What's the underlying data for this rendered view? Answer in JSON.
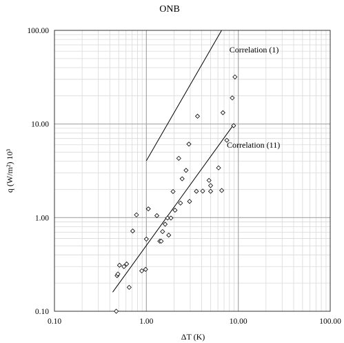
{
  "chart_data": {
    "type": "scatter",
    "title": "ONB",
    "xlabel": "ΔT (K)",
    "ylabel": "q (W/m²) 10³",
    "xscale": "log",
    "yscale": "log",
    "xlim": [
      0.1,
      100
    ],
    "ylim": [
      0.1,
      100
    ],
    "grid": true,
    "x_ticks": [
      "0.10",
      "1.00",
      "10.00",
      "100.00"
    ],
    "y_ticks": [
      "0.10",
      "1.00",
      "10.00",
      "100.00"
    ],
    "points": [
      {
        "x": 0.47,
        "y": 0.1
      },
      {
        "x": 0.48,
        "y": 0.24
      },
      {
        "x": 0.49,
        "y": 0.25
      },
      {
        "x": 0.51,
        "y": 0.31
      },
      {
        "x": 0.57,
        "y": 0.3
      },
      {
        "x": 0.61,
        "y": 0.32
      },
      {
        "x": 0.65,
        "y": 0.18
      },
      {
        "x": 0.71,
        "y": 0.72
      },
      {
        "x": 0.78,
        "y": 1.07
      },
      {
        "x": 0.89,
        "y": 0.27
      },
      {
        "x": 0.98,
        "y": 0.28
      },
      {
        "x": 1.0,
        "y": 0.59
      },
      {
        "x": 1.05,
        "y": 1.24
      },
      {
        "x": 1.3,
        "y": 1.05
      },
      {
        "x": 1.4,
        "y": 0.56
      },
      {
        "x": 1.45,
        "y": 0.56
      },
      {
        "x": 1.5,
        "y": 0.71
      },
      {
        "x": 1.6,
        "y": 0.85
      },
      {
        "x": 1.7,
        "y": 0.99
      },
      {
        "x": 1.75,
        "y": 0.65
      },
      {
        "x": 1.85,
        "y": 0.99
      },
      {
        "x": 1.95,
        "y": 1.9
      },
      {
        "x": 2.05,
        "y": 1.2
      },
      {
        "x": 2.25,
        "y": 4.3
      },
      {
        "x": 2.35,
        "y": 1.43
      },
      {
        "x": 2.45,
        "y": 2.6
      },
      {
        "x": 2.7,
        "y": 3.2
      },
      {
        "x": 2.9,
        "y": 6.1
      },
      {
        "x": 2.95,
        "y": 1.49
      },
      {
        "x": 3.5,
        "y": 1.91
      },
      {
        "x": 3.6,
        "y": 12.1
      },
      {
        "x": 4.1,
        "y": 1.92
      },
      {
        "x": 4.8,
        "y": 2.5
      },
      {
        "x": 5.0,
        "y": 2.2
      },
      {
        "x": 5.0,
        "y": 1.91
      },
      {
        "x": 6.1,
        "y": 3.4
      },
      {
        "x": 6.6,
        "y": 1.95
      },
      {
        "x": 6.8,
        "y": 13.2
      },
      {
        "x": 7.5,
        "y": 6.7
      },
      {
        "x": 8.6,
        "y": 19.0
      },
      {
        "x": 8.9,
        "y": 9.6
      },
      {
        "x": 9.2,
        "y": 31.8
      }
    ],
    "series": [
      {
        "name": "Correlation (1)",
        "type": "line",
        "x": [
          1.0,
          6.58
        ],
        "y": [
          4.05,
          100
        ]
      },
      {
        "name": "Correlation (11)",
        "type": "line",
        "x": [
          0.43,
          9.0
        ],
        "y": [
          0.16,
          10.0
        ]
      }
    ]
  }
}
